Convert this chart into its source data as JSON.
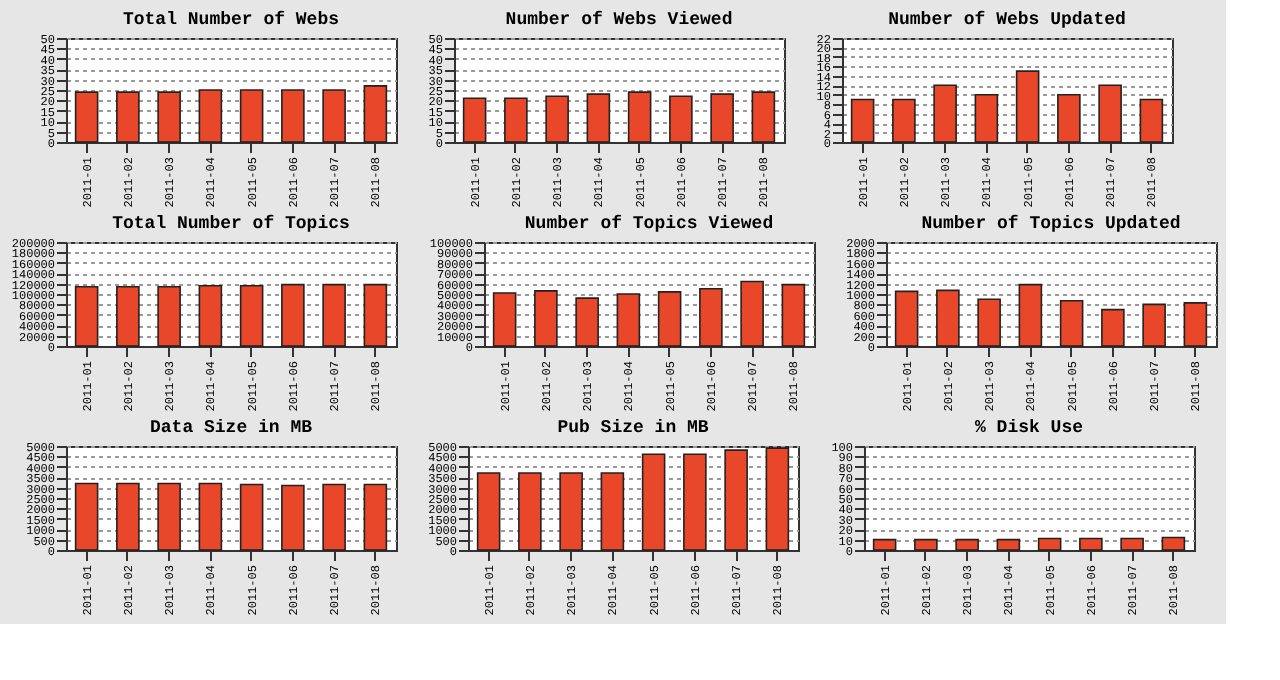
{
  "chart_data": [
    {
      "type": "bar",
      "title": "Total Number of Webs",
      "categories": [
        "2011-01",
        "2011-02",
        "2011-03",
        "2011-04",
        "2011-05",
        "2011-06",
        "2011-07",
        "2011-08"
      ],
      "values": [
        24,
        24,
        24,
        25,
        25,
        25,
        25,
        27
      ],
      "color": "#e8472a",
      "ylim": [
        0,
        50
      ],
      "yticks": [
        0,
        5,
        10,
        15,
        20,
        25,
        30,
        35,
        40,
        45,
        50
      ],
      "grid": "y"
    },
    {
      "type": "bar",
      "title": "Number of Webs Viewed",
      "categories": [
        "2011-01",
        "2011-02",
        "2011-03",
        "2011-04",
        "2011-05",
        "2011-06",
        "2011-07",
        "2011-08"
      ],
      "values": [
        21,
        21,
        22,
        23,
        24,
        22,
        23,
        24
      ],
      "color": "#e8472a",
      "ylim": [
        0,
        50
      ],
      "yticks": [
        0,
        5,
        10,
        15,
        20,
        25,
        30,
        35,
        40,
        45,
        50
      ],
      "grid": "y"
    },
    {
      "type": "bar",
      "title": "Number of Webs Updated",
      "categories": [
        "2011-01",
        "2011-02",
        "2011-03",
        "2011-04",
        "2011-05",
        "2011-06",
        "2011-07",
        "2011-08"
      ],
      "values": [
        9,
        9,
        12,
        10,
        15,
        10,
        12,
        9
      ],
      "color": "#e8472a",
      "ylim": [
        0,
        22
      ],
      "yticks": [
        0,
        2,
        4,
        6,
        8,
        10,
        12,
        14,
        16,
        18,
        20,
        22
      ],
      "grid": "y"
    },
    {
      "type": "bar",
      "title": "Total Number of Topics",
      "categories": [
        "2011-01",
        "2011-02",
        "2011-03",
        "2011-04",
        "2011-05",
        "2011-06",
        "2011-07",
        "2011-08"
      ],
      "values": [
        114000,
        114000,
        114000,
        116000,
        116000,
        118000,
        118000,
        118000
      ],
      "color": "#e8472a",
      "ylim": [
        0,
        200000
      ],
      "yticks": [
        0,
        20000,
        40000,
        60000,
        80000,
        100000,
        120000,
        140000,
        160000,
        180000,
        200000
      ],
      "grid": "y"
    },
    {
      "type": "bar",
      "title": "Number of Topics Viewed",
      "categories": [
        "2011-01",
        "2011-02",
        "2011-03",
        "2011-04",
        "2011-05",
        "2011-06",
        "2011-07",
        "2011-08"
      ],
      "values": [
        51000,
        53000,
        46000,
        50000,
        52000,
        55000,
        62000,
        59000
      ],
      "color": "#e8472a",
      "ylim": [
        0,
        100000
      ],
      "yticks": [
        0,
        10000,
        20000,
        30000,
        40000,
        50000,
        60000,
        70000,
        80000,
        90000,
        100000
      ],
      "grid": "y"
    },
    {
      "type": "bar",
      "title": "Number of Topics Updated",
      "categories": [
        "2011-01",
        "2011-02",
        "2011-03",
        "2011-04",
        "2011-05",
        "2011-06",
        "2011-07",
        "2011-08"
      ],
      "values": [
        1050,
        1070,
        900,
        1180,
        870,
        700,
        800,
        830
      ],
      "color": "#e8472a",
      "ylim": [
        0,
        2000
      ],
      "yticks": [
        0,
        200,
        400,
        600,
        800,
        1000,
        1200,
        1400,
        1600,
        1800,
        2000
      ],
      "grid": "y"
    },
    {
      "type": "bar",
      "title": "Data Size in MB",
      "categories": [
        "2011-01",
        "2011-02",
        "2011-03",
        "2011-04",
        "2011-05",
        "2011-06",
        "2011-07",
        "2011-08"
      ],
      "values": [
        3200,
        3200,
        3200,
        3200,
        3150,
        3100,
        3150,
        3150
      ],
      "color": "#e8472a",
      "ylim": [
        0,
        5000
      ],
      "yticks": [
        0,
        500,
        1000,
        1500,
        2000,
        2500,
        3000,
        3500,
        4000,
        4500,
        5000
      ],
      "grid": "y"
    },
    {
      "type": "bar",
      "title": "Pub Size in MB",
      "categories": [
        "2011-01",
        "2011-02",
        "2011-03",
        "2011-04",
        "2011-05",
        "2011-06",
        "2011-07",
        "2011-08"
      ],
      "values": [
        3700,
        3700,
        3700,
        3700,
        4600,
        4600,
        4800,
        4900
      ],
      "color": "#e8472a",
      "ylim": [
        0,
        5000
      ],
      "yticks": [
        0,
        500,
        1000,
        1500,
        2000,
        2500,
        3000,
        3500,
        4000,
        4500,
        5000
      ],
      "grid": "y"
    },
    {
      "type": "bar",
      "title": "% Disk Use",
      "categories": [
        "2011-01",
        "2011-02",
        "2011-03",
        "2011-04",
        "2011-05",
        "2011-06",
        "2011-07",
        "2011-08"
      ],
      "values": [
        10,
        10,
        10,
        10,
        11,
        11,
        11,
        12
      ],
      "color": "#e8472a",
      "ylim": [
        0,
        100
      ],
      "yticks": [
        0,
        10,
        20,
        30,
        40,
        50,
        60,
        70,
        80,
        90,
        100
      ],
      "grid": "y"
    }
  ]
}
